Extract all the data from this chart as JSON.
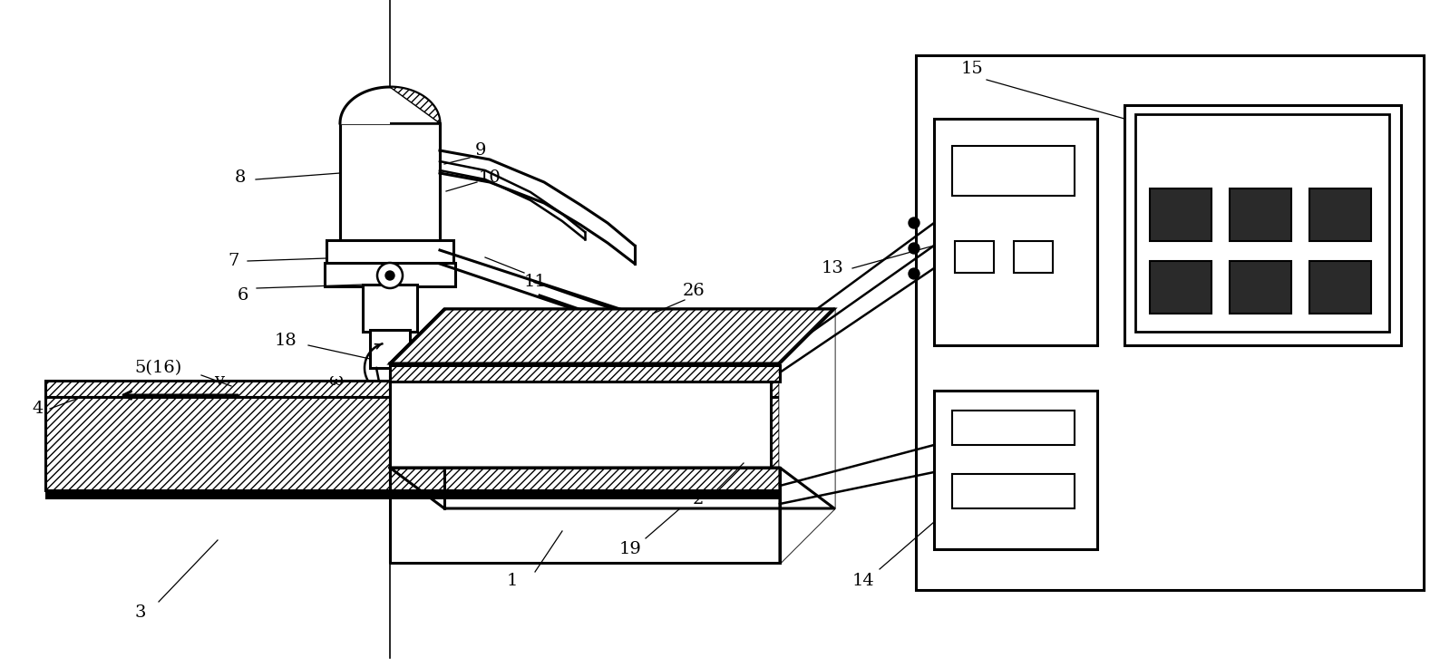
{
  "bg_color": "#ffffff",
  "line_color": "#000000",
  "fig_width": 15.88,
  "fig_height": 7.36
}
